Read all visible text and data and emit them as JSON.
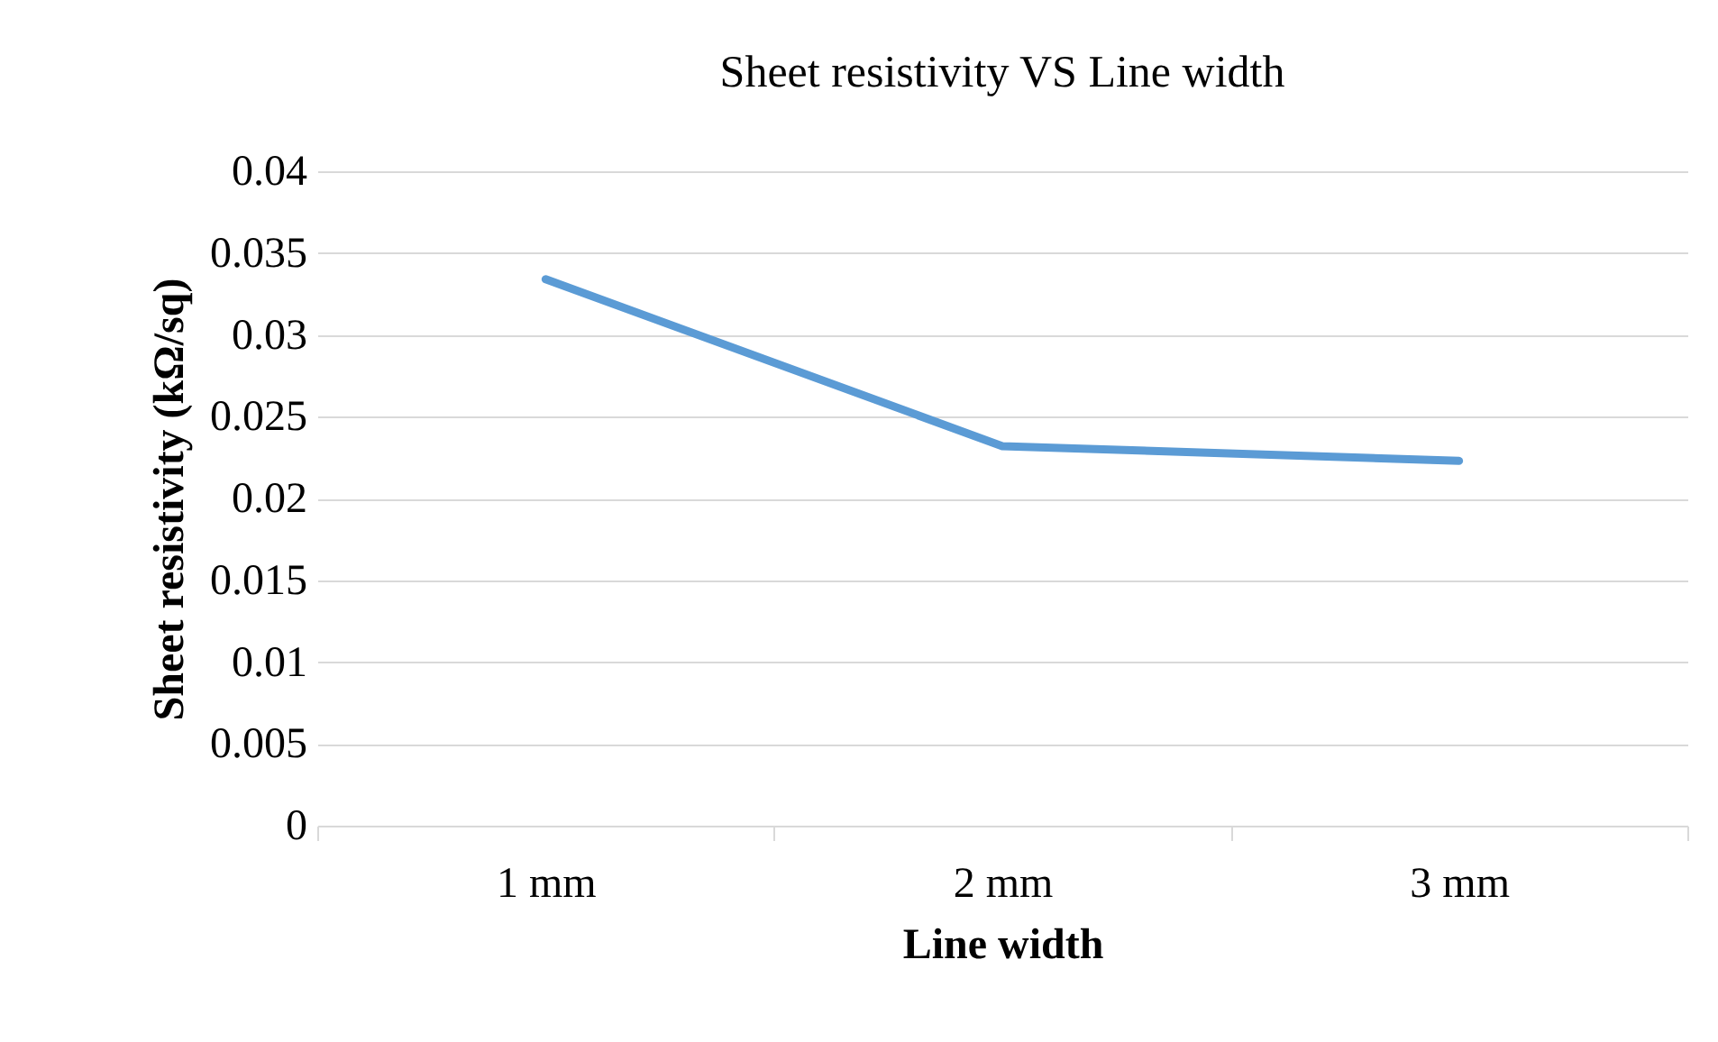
{
  "chart_data": {
    "type": "line",
    "title": "Sheet resistivity VS Line width",
    "xlabel": "Line width",
    "ylabel": "Sheet resistivity (kΩ/sq)",
    "categories": [
      "1 mm",
      "2 mm",
      "3 mm"
    ],
    "series": [
      {
        "color": "#5b9bd5",
        "values": [
          0.0334,
          0.0232,
          0.0223
        ]
      }
    ],
    "ylim": [
      0,
      0.04
    ],
    "yticks": [
      0,
      0.005,
      0.01,
      0.015,
      0.02,
      0.025,
      0.03,
      0.035,
      0.04
    ],
    "grid": "y",
    "legend": false,
    "marker": "none",
    "line_style": "solid"
  }
}
